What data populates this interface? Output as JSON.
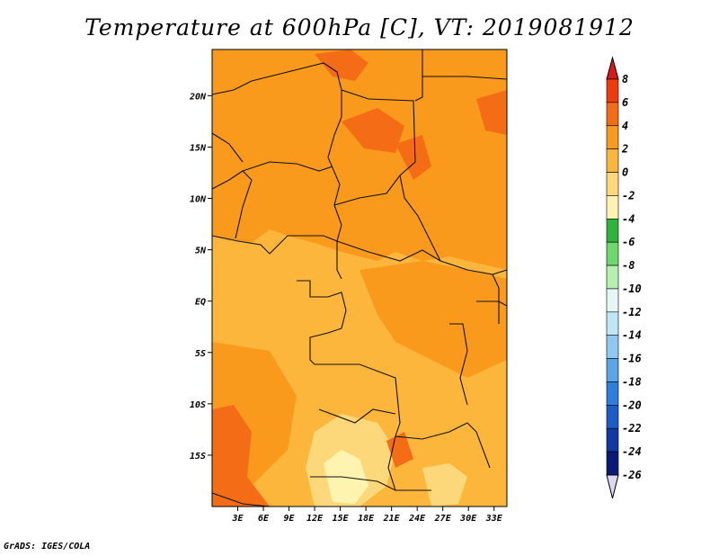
{
  "title": "Temperature at 600hPa [C], VT: 2019081912",
  "credit": "GrADS: IGES/COLA",
  "chart_data": {
    "type": "heatmap",
    "title": "Temperature at 600hPa [C], VT: 2019081912",
    "variable": "Temperature at 600hPa",
    "units": "C",
    "valid_time": "2019081912",
    "x_axis": {
      "ticks": [
        3,
        6,
        9,
        12,
        15,
        18,
        21,
        24,
        27,
        30,
        33
      ],
      "tick_labels": [
        "3E",
        "6E",
        "9E",
        "12E",
        "15E",
        "18E",
        "21E",
        "24E",
        "27E",
        "30E",
        "33E"
      ],
      "range": [
        0,
        34.5
      ]
    },
    "y_axis": {
      "ticks": [
        20,
        15,
        10,
        5,
        0,
        -5,
        -10,
        -15
      ],
      "tick_labels": [
        "20N",
        "15N",
        "10N",
        "5N",
        "EQ",
        "5S",
        "10S",
        "15S"
      ],
      "range": [
        -20,
        24.5
      ]
    },
    "colorbar": {
      "levels": [
        8,
        6,
        4,
        2,
        0,
        -2,
        -4,
        -6,
        -8,
        -10,
        -12,
        -14,
        -16,
        -18,
        -20,
        -22,
        -24,
        -26
      ],
      "labels": [
        "8",
        "6",
        "4",
        "2",
        "0",
        "-2",
        "-4",
        "-6",
        "-8",
        "-10",
        "-12",
        "-14",
        "-16",
        "-18",
        "-20",
        "-22",
        "-24",
        "-26"
      ],
      "colors": [
        "#d7191c",
        "#f03c0c",
        "#f46d16",
        "#f99a1c",
        "#fdb63c",
        "#fdd87a",
        "#fff3b0",
        "#2fb33a",
        "#6cd96a",
        "#b6f0b0",
        "#e4f7f4",
        "#bfe6f7",
        "#8fc8f0",
        "#5aa5e8",
        "#2e7fdd",
        "#1c5cc9",
        "#1238a6",
        "#0a1a78"
      ],
      "top_arrow_color": "#d7191c",
      "bottom_arrow_color": "#dcd8f2"
    },
    "field_summary": {
      "dominant_range": [
        0,
        4
      ],
      "warm_patches_range": [
        4,
        6
      ],
      "cool_patches_range": [
        -2,
        0
      ]
    }
  }
}
